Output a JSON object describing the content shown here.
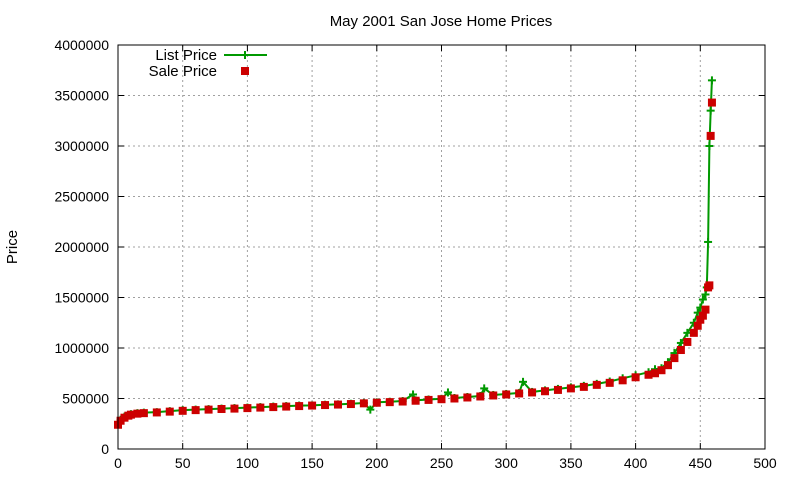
{
  "chart_data": {
    "type": "line",
    "title": "May 2001 San Jose Home Prices",
    "xlabel": "",
    "ylabel": "Price",
    "xlim": [
      0,
      500
    ],
    "ylim": [
      0,
      4000000
    ],
    "xticks": [
      0,
      50,
      100,
      150,
      200,
      250,
      300,
      350,
      400,
      450,
      500
    ],
    "yticks": [
      0,
      500000,
      1000000,
      1500000,
      2000000,
      2500000,
      3000000,
      3500000,
      4000000
    ],
    "grid": true,
    "legend_position": "top-left",
    "series": [
      {
        "name": "List Price",
        "style": "linespoints",
        "color": "#009900",
        "marker": "plus",
        "points": [
          [
            0,
            250000
          ],
          [
            2,
            290000
          ],
          [
            5,
            320000
          ],
          [
            8,
            335000
          ],
          [
            10,
            345000
          ],
          [
            15,
            355000
          ],
          [
            20,
            360000
          ],
          [
            30,
            365000
          ],
          [
            40,
            375000
          ],
          [
            50,
            385000
          ],
          [
            60,
            390000
          ],
          [
            70,
            395000
          ],
          [
            80,
            400000
          ],
          [
            90,
            405000
          ],
          [
            100,
            410000
          ],
          [
            110,
            415000
          ],
          [
            120,
            420000
          ],
          [
            130,
            425000
          ],
          [
            140,
            430000
          ],
          [
            150,
            432000
          ],
          [
            160,
            438000
          ],
          [
            170,
            442000
          ],
          [
            180,
            448000
          ],
          [
            190,
            455000
          ],
          [
            195,
            390000
          ],
          [
            200,
            462000
          ],
          [
            210,
            468000
          ],
          [
            220,
            475000
          ],
          [
            228,
            540000
          ],
          [
            230,
            482000
          ],
          [
            240,
            490000
          ],
          [
            250,
            497000
          ],
          [
            255,
            560000
          ],
          [
            260,
            505000
          ],
          [
            270,
            515000
          ],
          [
            280,
            525000
          ],
          [
            283,
            600000
          ],
          [
            290,
            535000
          ],
          [
            300,
            545000
          ],
          [
            310,
            555000
          ],
          [
            313,
            665000
          ],
          [
            320,
            565000
          ],
          [
            330,
            580000
          ],
          [
            340,
            595000
          ],
          [
            350,
            610000
          ],
          [
            360,
            625000
          ],
          [
            370,
            645000
          ],
          [
            380,
            668000
          ],
          [
            390,
            700000
          ],
          [
            400,
            730000
          ],
          [
            410,
            760000
          ],
          [
            415,
            790000
          ],
          [
            420,
            800000
          ],
          [
            425,
            860000
          ],
          [
            430,
            950000
          ],
          [
            435,
            1050000
          ],
          [
            440,
            1150000
          ],
          [
            445,
            1250000
          ],
          [
            448,
            1350000
          ],
          [
            450,
            1400000
          ],
          [
            452,
            1480000
          ],
          [
            454,
            1530000
          ],
          [
            455,
            1600000
          ],
          [
            456,
            2050000
          ],
          [
            457,
            3000000
          ],
          [
            458,
            3350000
          ],
          [
            459,
            3650000
          ]
        ]
      },
      {
        "name": "Sale Price",
        "style": "points",
        "color": "#cc0000",
        "marker": "square",
        "points": [
          [
            0,
            240000
          ],
          [
            2,
            280000
          ],
          [
            5,
            310000
          ],
          [
            8,
            330000
          ],
          [
            10,
            340000
          ],
          [
            15,
            350000
          ],
          [
            20,
            355000
          ],
          [
            30,
            362000
          ],
          [
            40,
            370000
          ],
          [
            50,
            378000
          ],
          [
            60,
            385000
          ],
          [
            70,
            390000
          ],
          [
            80,
            396000
          ],
          [
            90,
            400000
          ],
          [
            100,
            405000
          ],
          [
            110,
            410000
          ],
          [
            120,
            415000
          ],
          [
            130,
            420000
          ],
          [
            140,
            425000
          ],
          [
            150,
            430000
          ],
          [
            160,
            435000
          ],
          [
            170,
            440000
          ],
          [
            180,
            445000
          ],
          [
            190,
            452000
          ],
          [
            200,
            458000
          ],
          [
            210,
            464000
          ],
          [
            220,
            470000
          ],
          [
            230,
            478000
          ],
          [
            240,
            486000
          ],
          [
            250,
            493000
          ],
          [
            260,
            500000
          ],
          [
            270,
            510000
          ],
          [
            280,
            520000
          ],
          [
            290,
            530000
          ],
          [
            300,
            540000
          ],
          [
            310,
            550000
          ],
          [
            320,
            560000
          ],
          [
            330,
            572000
          ],
          [
            340,
            585000
          ],
          [
            350,
            600000
          ],
          [
            360,
            615000
          ],
          [
            370,
            635000
          ],
          [
            380,
            655000
          ],
          [
            390,
            680000
          ],
          [
            400,
            710000
          ],
          [
            410,
            735000
          ],
          [
            415,
            750000
          ],
          [
            420,
            780000
          ],
          [
            425,
            830000
          ],
          [
            430,
            900000
          ],
          [
            435,
            980000
          ],
          [
            440,
            1060000
          ],
          [
            445,
            1150000
          ],
          [
            448,
            1220000
          ],
          [
            450,
            1280000
          ],
          [
            452,
            1320000
          ],
          [
            454,
            1380000
          ],
          [
            456,
            1600000
          ],
          [
            457,
            1620000
          ],
          [
            458,
            3100000
          ],
          [
            459,
            3430000
          ]
        ]
      }
    ]
  }
}
